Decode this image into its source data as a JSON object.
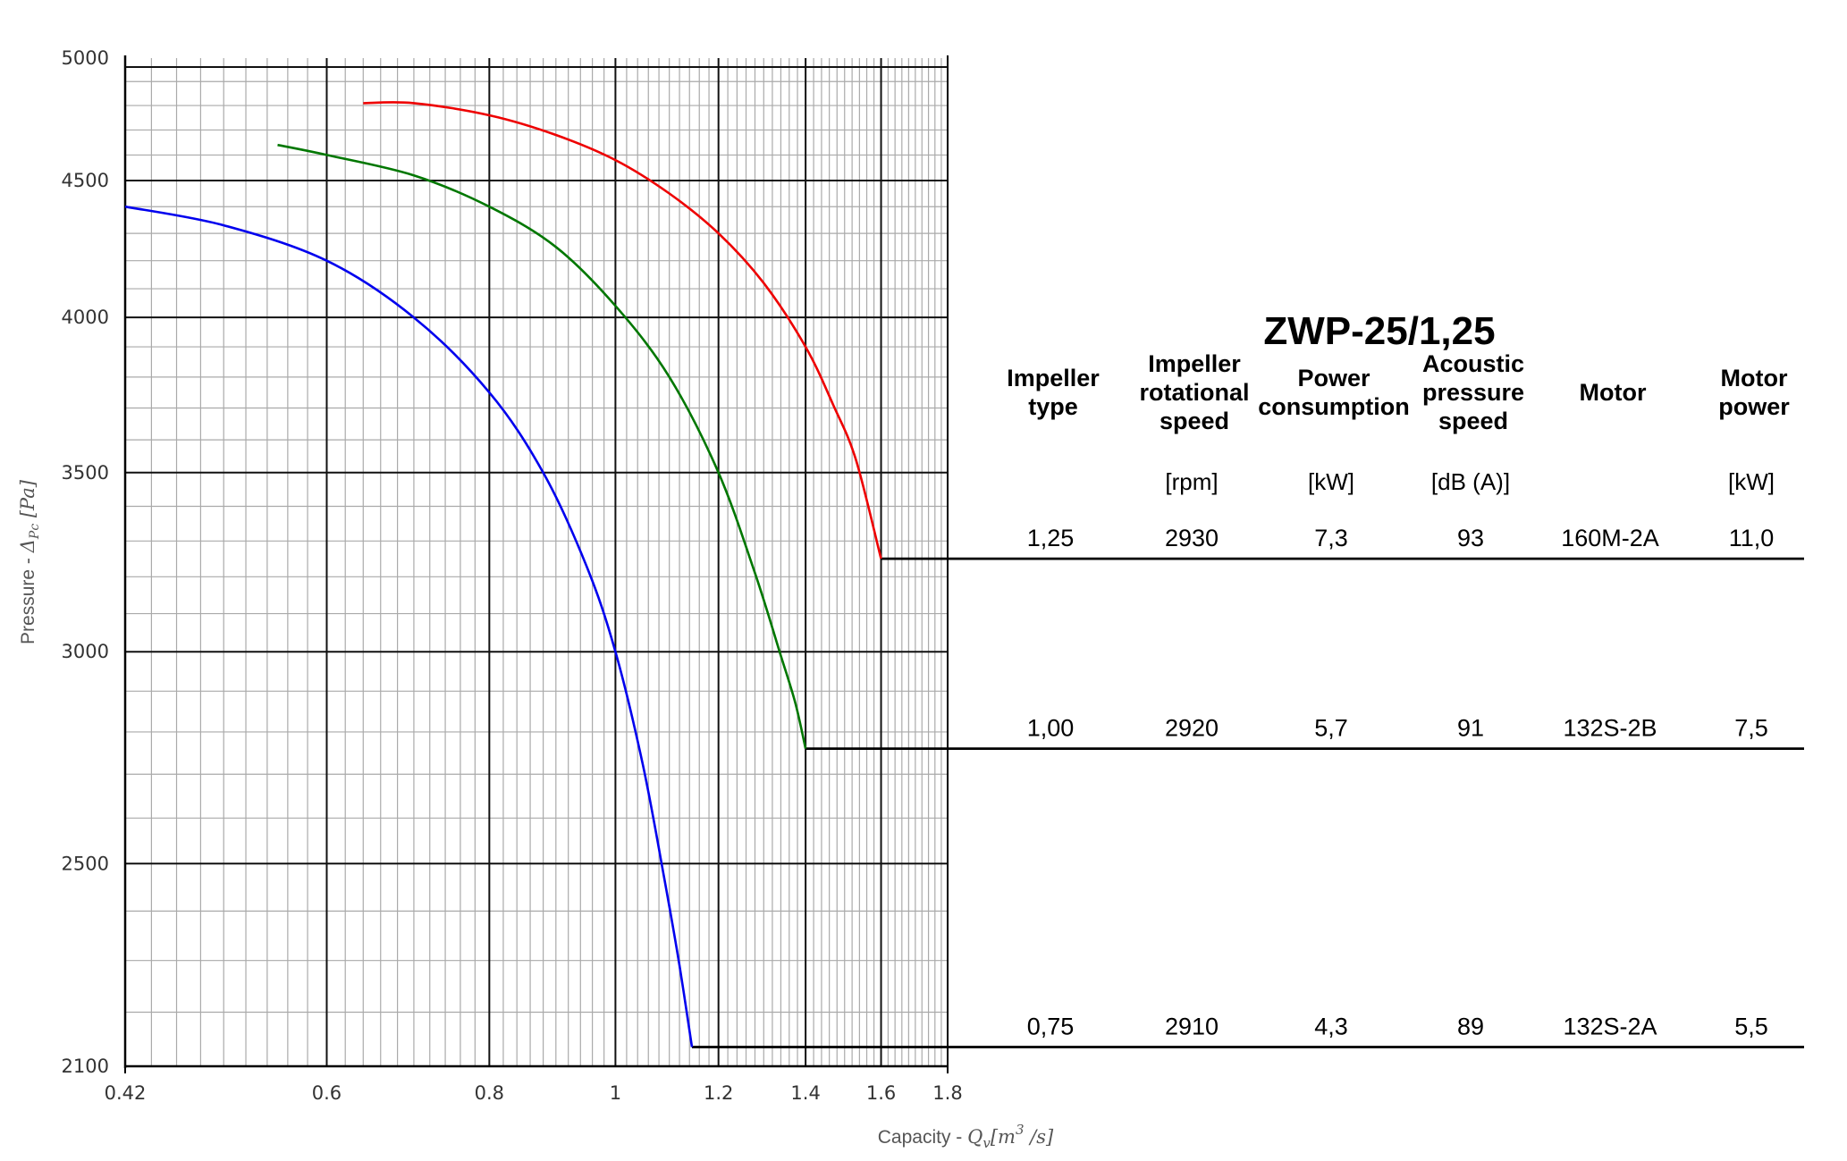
{
  "chart_data": {
    "type": "line",
    "title": "ZWP-25/1,25",
    "xlabel_text": "Capacity - ",
    "xlabel_symbol": "Q",
    "xlabel_sub": "v",
    "xlabel_unit_open": "[m",
    "xlabel_unit_sup": "3",
    "xlabel_unit_close": " /s]",
    "ylabel_text": "Pressure - ",
    "ylabel_symbol": "Δ",
    "ylabel_sub": "Pc",
    "ylabel_unit": " [Pa]",
    "x_scale": "log",
    "y_scale": "log",
    "xlim": [
      0.42,
      1.8
    ],
    "ylim": [
      2100,
      5000
    ],
    "x_ticks": [
      {
        "value": 0.42,
        "label": "0.42"
      },
      {
        "value": 0.6,
        "label": "0.6"
      },
      {
        "value": 0.8,
        "label": "0.8"
      },
      {
        "value": 1,
        "label": "1"
      },
      {
        "value": 1.2,
        "label": "1.2"
      },
      {
        "value": 1.4,
        "label": "1.4"
      },
      {
        "value": 1.6,
        "label": "1.6"
      },
      {
        "value": 1.8,
        "label": "1.8"
      }
    ],
    "y_ticks": [
      {
        "value": 2100,
        "label": "2100"
      },
      {
        "value": 2500,
        "label": "2500"
      },
      {
        "value": 3000,
        "label": "3000"
      },
      {
        "value": 3500,
        "label": "3500"
      },
      {
        "value": 4000,
        "label": "4000"
      },
      {
        "value": 4500,
        "label": "4500"
      },
      {
        "value": 5000,
        "label": "5000"
      }
    ],
    "x_major_lines": [
      0.6,
      0.8,
      1,
      1.2,
      1.4,
      1.6
    ],
    "x_minor_lines": [
      0.44,
      0.46,
      0.48,
      0.5,
      0.52,
      0.54,
      0.56,
      0.58,
      0.62,
      0.64,
      0.66,
      0.68,
      0.7,
      0.72,
      0.74,
      0.76,
      0.78,
      0.82,
      0.84,
      0.86,
      0.88,
      0.9,
      0.92,
      0.94,
      0.96,
      0.98,
      1.02,
      1.04,
      1.06,
      1.08,
      1.1,
      1.12,
      1.14,
      1.16,
      1.18,
      1.22,
      1.24,
      1.26,
      1.28,
      1.3,
      1.32,
      1.34,
      1.36,
      1.38,
      1.42,
      1.44,
      1.46,
      1.48,
      1.5,
      1.52,
      1.54,
      1.56,
      1.58,
      1.62,
      1.64,
      1.66,
      1.68,
      1.7,
      1.72,
      1.74,
      1.76,
      1.78
    ],
    "y_major_lines": [
      2500,
      3000,
      3500,
      4000,
      4500
    ],
    "y_minor_lines": [
      2200,
      2300,
      2400,
      2600,
      2700,
      2800,
      2900,
      3100,
      3200,
      3300,
      3400,
      3600,
      3700,
      3800,
      3900,
      4100,
      4200,
      4300,
      4400,
      4600,
      4700,
      4800,
      4900
    ],
    "grid": true,
    "series": [
      {
        "impeller": "0,75",
        "color": "#0000ee",
        "x": [
          0.42,
          0.5,
          0.6,
          0.7,
          0.8,
          0.88,
          0.95,
          1.0,
          1.05,
          1.09,
          1.12,
          1.145
        ],
        "y": [
          4400,
          4330,
          4200,
          4000,
          3750,
          3500,
          3230,
          3000,
          2720,
          2470,
          2290,
          2135
        ],
        "end_x": 1.145,
        "end_y": 2135,
        "leader_to_x": 1.8
      },
      {
        "impeller": "1,00",
        "color": "#007700",
        "x": [
          0.55,
          0.6,
          0.7,
          0.8,
          0.9,
          1.0,
          1.1,
          1.2,
          1.28,
          1.34,
          1.375,
          1.4
        ],
        "y": [
          4640,
          4600,
          4520,
          4400,
          4250,
          4040,
          3800,
          3500,
          3210,
          2990,
          2870,
          2760
        ],
        "end_x": 1.4,
        "end_y": 2760,
        "leader_to_x": 1.8
      },
      {
        "impeller": "1,25",
        "color": "#ee0000",
        "x": [
          0.64,
          0.7,
          0.8,
          0.9,
          1.0,
          1.1,
          1.2,
          1.3,
          1.4,
          1.47,
          1.53,
          1.6
        ],
        "y": [
          4810,
          4810,
          4760,
          4680,
          4580,
          4450,
          4300,
          4120,
          3900,
          3710,
          3540,
          3250
        ],
        "end_x": 1.6,
        "end_y": 3250,
        "leader_to_x": 1.8
      }
    ],
    "table": {
      "headers": [
        {
          "lines": [
            "Impeller",
            "type"
          ],
          "unit": ""
        },
        {
          "lines": [
            "Impeller",
            "rotational",
            "speed"
          ],
          "unit": "[rpm]"
        },
        {
          "lines": [
            "Power",
            "consumption"
          ],
          "unit": "[kW]"
        },
        {
          "lines": [
            "Acoustic",
            "pressure",
            "speed"
          ],
          "unit": "[dB (A)]"
        },
        {
          "lines": [
            "Motor"
          ],
          "unit": ""
        },
        {
          "lines": [
            "Motor",
            "power"
          ],
          "unit": "[kW]"
        }
      ],
      "rows": [
        {
          "y": 3250,
          "cells": [
            "1,25",
            "2930",
            "7,3",
            "93",
            "160M-2A",
            "11,0"
          ]
        },
        {
          "y": 2760,
          "cells": [
            "1,00",
            "2920",
            "5,7",
            "91",
            "132S-2B",
            "7,5"
          ]
        },
        {
          "y": 2135,
          "cells": [
            "0,75",
            "2910",
            "4,3",
            "89",
            "132S-2A",
            "5,5"
          ]
        }
      ]
    }
  }
}
